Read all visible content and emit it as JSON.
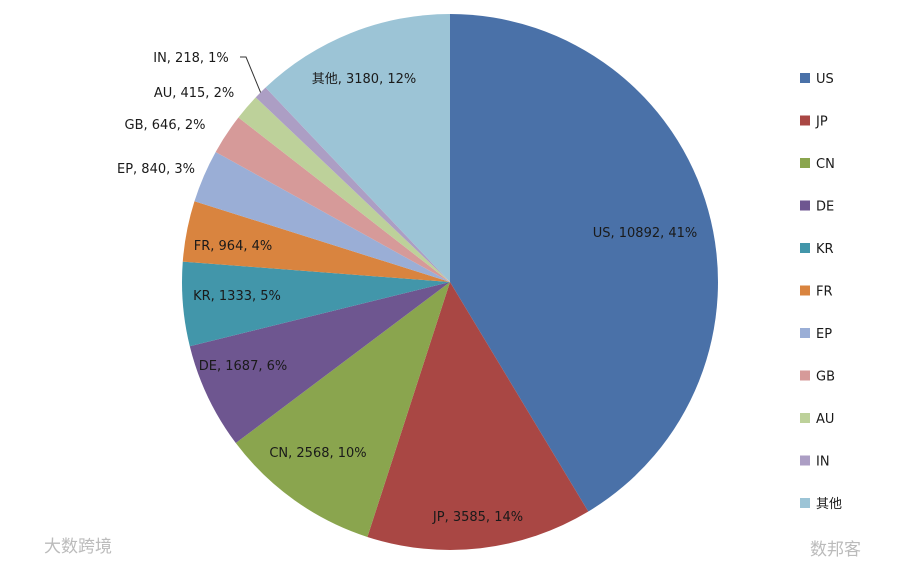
{
  "chart_data": {
    "type": "pie",
    "title": "",
    "start_angle": "12 o'clock, clockwise",
    "legend_position": "right",
    "slices": [
      {
        "label": "US",
        "value": 10892,
        "percent": "41%",
        "color": "#4a71a8"
      },
      {
        "label": "JP",
        "value": 3585,
        "percent": "14%",
        "color": "#a94744"
      },
      {
        "label": "CN",
        "value": 2568,
        "percent": "10%",
        "color": "#8aa54e"
      },
      {
        "label": "DE",
        "value": 1687,
        "percent": "6%",
        "color": "#6e5690"
      },
      {
        "label": "KR",
        "value": 1333,
        "percent": "5%",
        "color": "#4296aa"
      },
      {
        "label": "FR",
        "value": 964,
        "percent": "4%",
        "color": "#d9843f"
      },
      {
        "label": "EP",
        "value": 840,
        "percent": "3%",
        "color": "#9aaed6"
      },
      {
        "label": "GB",
        "value": 646,
        "percent": "2%",
        "color": "#d69a99"
      },
      {
        "label": "AU",
        "value": 415,
        "percent": "2%",
        "color": "#bdd19a"
      },
      {
        "label": "IN",
        "value": 218,
        "percent": "1%",
        "color": "#ac9ec4"
      },
      {
        "label": "其他",
        "value": 3180,
        "percent": "12%",
        "color": "#9cc4d6"
      }
    ]
  },
  "watermarks": [
    "大数跨境",
    "数邦客"
  ]
}
